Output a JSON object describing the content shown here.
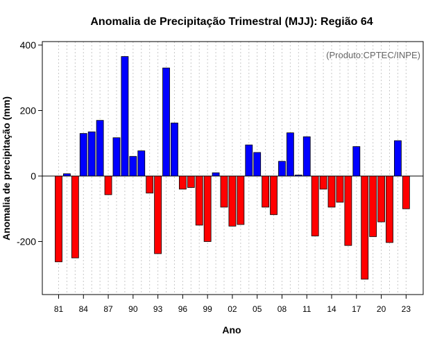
{
  "chart_data": {
    "type": "bar",
    "title": "Anomalia de Precipitação Trimestral (MJJ): Região 64",
    "xlabel": "Ano",
    "ylabel": "Anomalia de precipitação (mm)",
    "credit": "(Produto:CPTEC/INPE)",
    "ylim": [
      -375,
      415
    ],
    "yticks": [
      -200,
      0,
      200,
      400
    ],
    "ytick_labels": [
      "-200",
      "0",
      "200",
      "400"
    ],
    "xtick_labels": [
      "81",
      "84",
      "87",
      "90",
      "93",
      "96",
      "99",
      "02",
      "05",
      "08",
      "11",
      "14",
      "17",
      "20",
      "23"
    ],
    "xtick_years": [
      1981,
      1984,
      1987,
      1990,
      1993,
      1996,
      1999,
      2002,
      2005,
      2008,
      2011,
      2014,
      2017,
      2020,
      2023
    ],
    "grid": true,
    "years": [
      1981,
      1982,
      1983,
      1984,
      1985,
      1986,
      1987,
      1988,
      1989,
      1990,
      1991,
      1992,
      1993,
      1994,
      1995,
      1996,
      1997,
      1998,
      1999,
      2000,
      2001,
      2002,
      2003,
      2004,
      2005,
      2006,
      2007,
      2008,
      2009,
      2010,
      2011,
      2012,
      2013,
      2014,
      2015,
      2016,
      2017,
      2018,
      2019,
      2020,
      2021,
      2022,
      2023
    ],
    "values": [
      -262,
      7,
      -250,
      130,
      135,
      170,
      -57,
      117,
      365,
      60,
      77,
      -52,
      -237,
      330,
      162,
      -40,
      -35,
      -150,
      -200,
      10,
      -95,
      -153,
      -148,
      95,
      72,
      -95,
      -118,
      45,
      132,
      3,
      120,
      -183,
      -40,
      -95,
      -80,
      -212,
      90,
      -315,
      -185,
      -140,
      -203,
      108,
      -100
    ],
    "colors": {
      "positive": "#0000ff",
      "negative": "#ff0000",
      "bar_stroke": "#000000"
    }
  }
}
